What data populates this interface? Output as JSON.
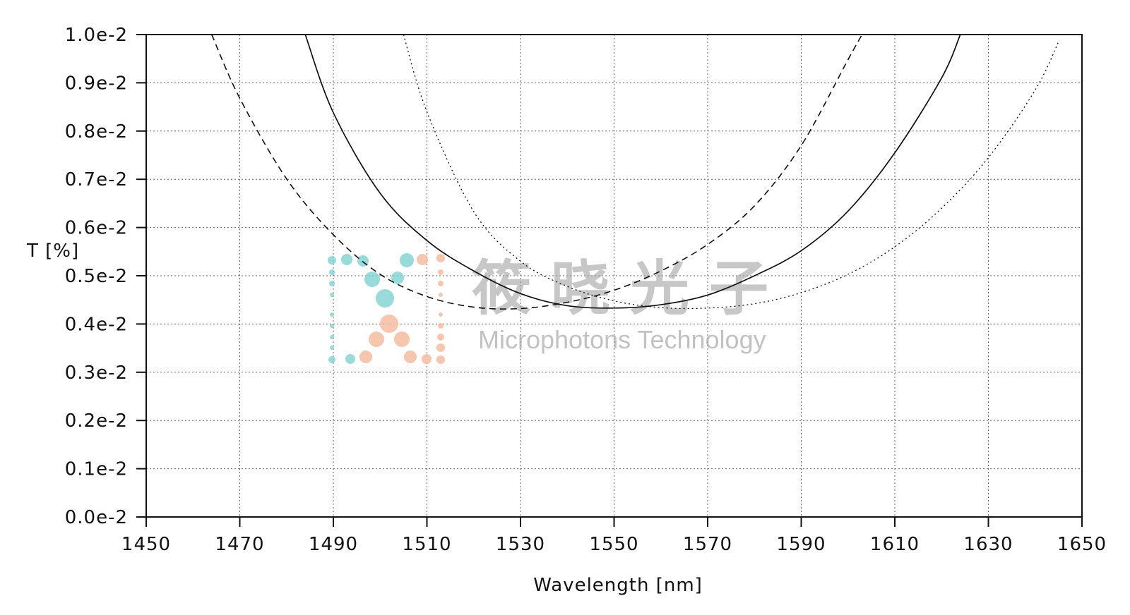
{
  "chart_data": {
    "type": "line",
    "title": "",
    "xlabel": "Wavelength [nm]",
    "ylabel": "T [%]",
    "xlim": [
      1450,
      1650
    ],
    "ylim": [
      0.0,
      1.0
    ],
    "x_ticks": [
      1450,
      1470,
      1490,
      1510,
      1530,
      1550,
      1570,
      1590,
      1610,
      1630,
      1650
    ],
    "y_ticks": [
      0.0,
      0.1,
      0.2,
      0.3,
      0.4,
      0.5,
      0.6,
      0.7,
      0.8,
      0.9,
      1.0
    ],
    "y_tick_labels": [
      "0.0e-2",
      "0.1e-2",
      "0.2e-2",
      "0.3e-2",
      "0.4e-2",
      "0.5e-2",
      "0.6e-2",
      "0.7e-2",
      "0.8e-2",
      "0.9e-2",
      "1.0e-2"
    ],
    "grid": true,
    "series": [
      {
        "style": "dashed",
        "x": [
          1464,
          1470,
          1480,
          1490,
          1500,
          1510,
          1520,
          1530,
          1540,
          1550,
          1560,
          1570,
          1580,
          1590,
          1600,
          1603
        ],
        "y": [
          1.0,
          0.868,
          0.701,
          0.585,
          0.503,
          0.457,
          0.435,
          0.432,
          0.445,
          0.47,
          0.51,
          0.565,
          0.645,
          0.77,
          0.948,
          1.0
        ]
      },
      {
        "style": "solid",
        "x": [
          1484,
          1490,
          1500,
          1510,
          1520,
          1530,
          1540,
          1550,
          1560,
          1570,
          1580,
          1590,
          1600,
          1610,
          1620,
          1624
        ],
        "y": [
          1.0,
          0.838,
          0.671,
          0.573,
          0.51,
          0.463,
          0.438,
          0.433,
          0.44,
          0.46,
          0.5,
          0.552,
          0.634,
          0.755,
          0.91,
          1.0
        ]
      },
      {
        "style": "dotted",
        "x": [
          1505,
          1510,
          1520,
          1530,
          1540,
          1550,
          1560,
          1570,
          1580,
          1590,
          1600,
          1610,
          1620,
          1630,
          1640,
          1645
        ],
        "y": [
          1.0,
          0.84,
          0.633,
          0.53,
          0.478,
          0.448,
          0.434,
          0.433,
          0.442,
          0.465,
          0.503,
          0.56,
          0.64,
          0.745,
          0.885,
          0.985
        ]
      }
    ]
  },
  "watermark": {
    "chinese": "筱晓光子",
    "english": "Microphotons Technology",
    "teal": "#7fd1d1",
    "peach": "#f4b89a"
  }
}
